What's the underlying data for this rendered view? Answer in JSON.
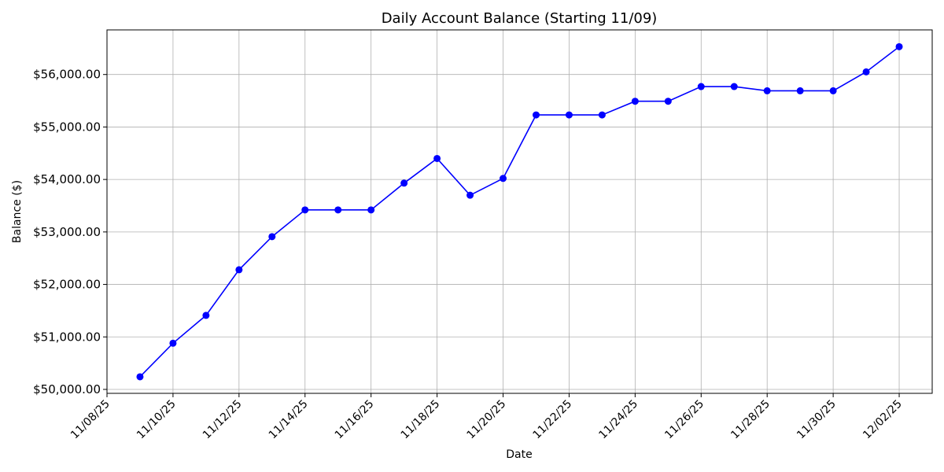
{
  "chart_data": {
    "type": "line",
    "title": "Daily Account Balance (Starting 11/09)",
    "x_label": "Date",
    "y_label": "Balance ($)",
    "x": [
      "11/09/25",
      "11/10/25",
      "11/11/25",
      "11/12/25",
      "11/13/25",
      "11/14/25",
      "11/15/25",
      "11/16/25",
      "11/17/25",
      "11/18/25",
      "11/19/25",
      "11/20/25",
      "11/21/25",
      "11/22/25",
      "11/23/25",
      "11/24/25",
      "11/25/25",
      "11/26/25",
      "11/27/25",
      "11/28/25",
      "11/29/25",
      "11/30/25",
      "12/01/25",
      "12/02/25"
    ],
    "series": [
      {
        "name": "Balance",
        "color": "#0000ff",
        "values": [
          50240,
          50880,
          51410,
          52280,
          52910,
          53420,
          53420,
          53420,
          53930,
          54400,
          53700,
          54020,
          55230,
          55230,
          55230,
          55490,
          55490,
          55770,
          55770,
          55690,
          55690,
          55690,
          56050,
          56530
        ]
      }
    ],
    "xlim": [
      "11/08/25",
      "12/03/25"
    ],
    "xticks": [
      "11/08/25",
      "11/10/25",
      "11/12/25",
      "11/14/25",
      "11/16/25",
      "11/18/25",
      "11/20/25",
      "11/22/25",
      "11/24/25",
      "11/26/25",
      "11/28/25",
      "11/30/25",
      "12/02/25"
    ],
    "ylim": [
      49925,
      56850
    ],
    "yticks": [
      {
        "value": 50000,
        "label": "$50,000.00"
      },
      {
        "value": 51000,
        "label": "$51,000.00"
      },
      {
        "value": 52000,
        "label": "$52,000.00"
      },
      {
        "value": 53000,
        "label": "$53,000.00"
      },
      {
        "value": 54000,
        "label": "$54,000.00"
      },
      {
        "value": 55000,
        "label": "$55,000.00"
      },
      {
        "value": 56000,
        "label": "$56,000.00"
      }
    ],
    "grid": true
  }
}
